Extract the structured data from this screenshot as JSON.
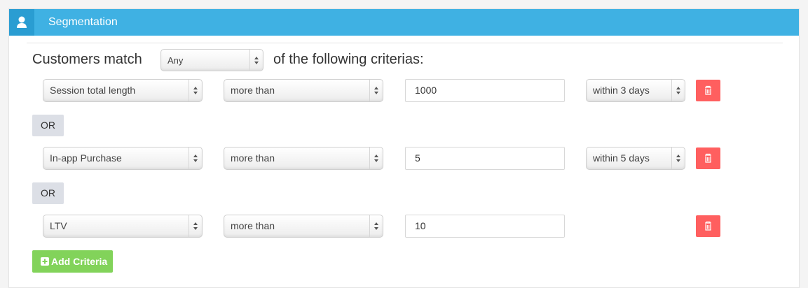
{
  "panel": {
    "title": "Segmentation",
    "icon": "user-icon",
    "accent": "#3fb1e3"
  },
  "match": {
    "prefix": "Customers match",
    "mode": "Any",
    "suffix": "of the following criterias:"
  },
  "criteria": [
    {
      "field": "Session total length",
      "operator": "more than",
      "value": "1000",
      "period": "within 3 days"
    },
    {
      "field": "In-app Purchase",
      "operator": "more than",
      "value": "5",
      "period": "within 5 days"
    },
    {
      "field": "LTV",
      "operator": "more than",
      "value": "10",
      "period": null
    }
  ],
  "or_label": "OR",
  "add_label": "Add Criteria",
  "colors": {
    "delete": "#ff5f5f",
    "add": "#82d35a",
    "or": "#dcdfe6"
  }
}
